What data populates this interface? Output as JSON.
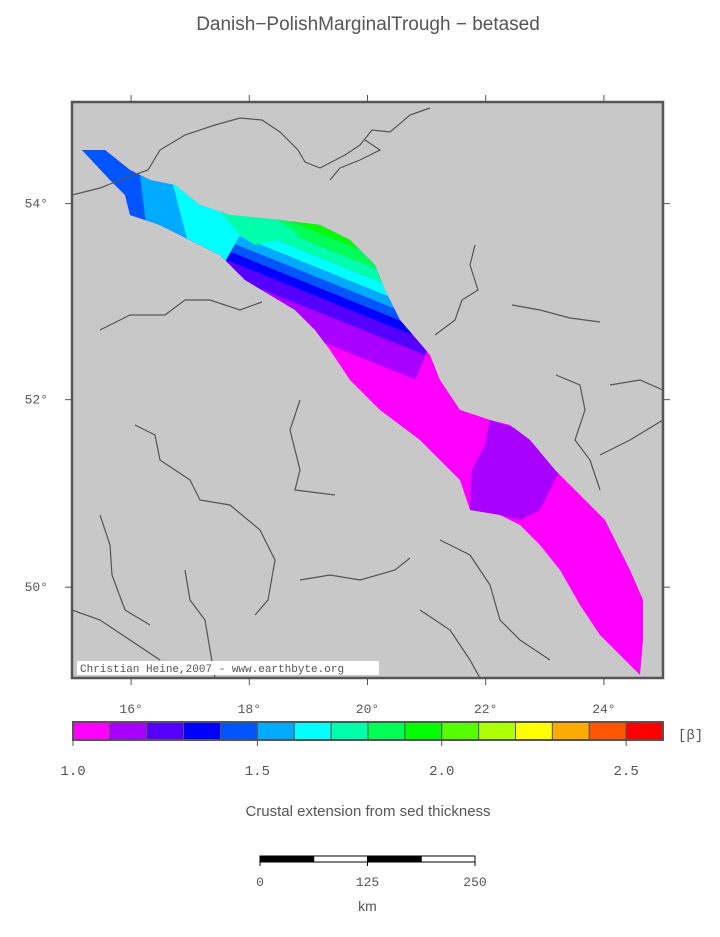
{
  "title": "Danish−PolishMarginalTrough − betased",
  "map": {
    "xlim": [
      15,
      25
    ],
    "ylim": [
      49,
      55
    ],
    "xticks": [
      {
        "value": 16,
        "label": "16°"
      },
      {
        "value": 18,
        "label": "18°"
      },
      {
        "value": 20,
        "label": "20°"
      },
      {
        "value": 22,
        "label": "22°"
      },
      {
        "value": 24,
        "label": "24°"
      }
    ],
    "yticks": [
      {
        "value": 50,
        "label": "50°"
      },
      {
        "value": 52,
        "label": "52°"
      },
      {
        "value": 54,
        "label": "54°"
      }
    ],
    "credit": "Christian Heine,2007 - www.earthbyte.org"
  },
  "colorbar": {
    "range": [
      1.0,
      2.6
    ],
    "colors": [
      "#ff00ff",
      "#aa00ff",
      "#5500ff",
      "#0000ff",
      "#0055ff",
      "#00aaff",
      "#00ffff",
      "#00ffaa",
      "#00ff55",
      "#00ff00",
      "#55ff00",
      "#aaff00",
      "#ffff00",
      "#ffaa00",
      "#ff5500",
      "#ff0000"
    ],
    "ticks": [
      {
        "value": 1.0,
        "label": "1.0"
      },
      {
        "value": 1.5,
        "label": "1.5"
      },
      {
        "value": 2.0,
        "label": "2.0"
      },
      {
        "value": 2.5,
        "label": "2.5"
      }
    ],
    "unit": "[β]"
  },
  "caption": "Crustal extension from sed thickness",
  "scale_bar": {
    "ticks": [
      0,
      125,
      250
    ],
    "unit": "km"
  }
}
